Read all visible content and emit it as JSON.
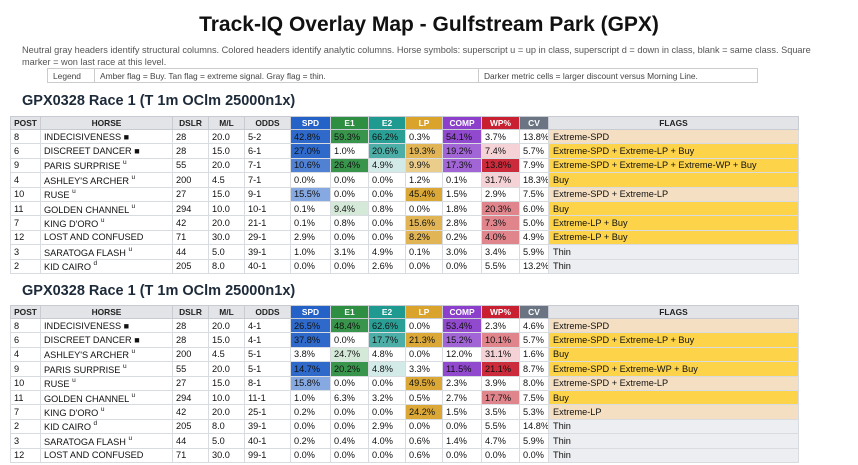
{
  "title": "Track-IQ Overlay Map - Gulfstream Park (GPX)",
  "description": "Neutral gray headers identify structural columns. Colored headers identify analytic columns. Horse symbols: superscript u = up in class, superscript d = down in class, blank = same class. Square marker = won last race at this level.",
  "legend": {
    "label": "Legend",
    "flags": "Amber flag = Buy. Tan flag = extreme signal. Gray flag = thin.",
    "metrics": "Darker metric cells = larger discount versus Morning Line."
  },
  "columns": [
    "POST",
    "HORSE",
    "DSLR",
    "M/L",
    "ODDS",
    "SPD",
    "E1",
    "E2",
    "LP",
    "COMP",
    "WP%",
    "CV",
    "FLAGS"
  ],
  "colors": {
    "SPD": "#2462c8",
    "E1": "#2e8f42",
    "E2": "#1f9a90",
    "LP": "#d9a32c",
    "COMP": "#8b3fcb",
    "WP": "#c82030",
    "CV": "#6a7482",
    "flag_buy": "#fdd34a",
    "flag_extreme": "#f5dfc3",
    "flag_thin": "#eceef1"
  },
  "races": [
    {
      "title": "GPX0328 Race 1 (T 1m OClm 25000n1x)",
      "rows": [
        {
          "post": "8",
          "horse": "INDECISIVENESS",
          "marker": "■",
          "sup": "",
          "dslr": "28",
          "ml": "20.0",
          "odds": "5-2",
          "m": [
            [
              "42.8%",
              4
            ],
            [
              "59.3%",
              4
            ],
            [
              "66.2%",
              4
            ],
            [
              "0.3%",
              0
            ],
            [
              "54.1%",
              4
            ],
            [
              "3.7%",
              0
            ],
            [
              "13.8%",
              0
            ]
          ],
          "flags": "Extreme-SPD",
          "flag_type": "extreme"
        },
        {
          "post": "6",
          "horse": "DISCREET DANCER",
          "marker": "■",
          "sup": "",
          "dslr": "28",
          "ml": "15.0",
          "odds": "6-1",
          "m": [
            [
              "27.0%",
              4
            ],
            [
              "1.0%",
              0
            ],
            [
              "20.6%",
              3
            ],
            [
              "19.3%",
              3
            ],
            [
              "19.2%",
              3
            ],
            [
              "7.4%",
              1
            ],
            [
              "5.7%",
              0
            ]
          ],
          "flags": "Extreme-SPD + Extreme-LP + Buy",
          "flag_type": "buy"
        },
        {
          "post": "9",
          "horse": "PARIS SURPRISE",
          "marker": "",
          "sup": "u",
          "dslr": "55",
          "ml": "20.0",
          "odds": "7-1",
          "m": [
            [
              "10.6%",
              3
            ],
            [
              "26.4%",
              4
            ],
            [
              "4.9%",
              1
            ],
            [
              "9.9%",
              2
            ],
            [
              "17.3%",
              3
            ],
            [
              "13.8%",
              4
            ],
            [
              "7.9%",
              0
            ]
          ],
          "flags": "Extreme-SPD + Extreme-LP + Extreme-WP + Buy",
          "flag_type": "buy"
        },
        {
          "post": "4",
          "horse": "ASHLEY'S ARCHER",
          "marker": "",
          "sup": "u",
          "dslr": "200",
          "ml": "4.5",
          "odds": "7-1",
          "m": [
            [
              "0.0%",
              0
            ],
            [
              "0.0%",
              0
            ],
            [
              "0.0%",
              0
            ],
            [
              "1.2%",
              0
            ],
            [
              "0.1%",
              0
            ],
            [
              "31.7%",
              1
            ],
            [
              "18.3%",
              0
            ]
          ],
          "flags": "Buy",
          "flag_type": "buy"
        },
        {
          "post": "10",
          "horse": "RUSE",
          "marker": "",
          "sup": "u",
          "dslr": "27",
          "ml": "15.0",
          "odds": "9-1",
          "m": [
            [
              "15.5%",
              2
            ],
            [
              "0.0%",
              0
            ],
            [
              "0.0%",
              0
            ],
            [
              "45.4%",
              4
            ],
            [
              "1.5%",
              0
            ],
            [
              "2.9%",
              0
            ],
            [
              "7.5%",
              0
            ]
          ],
          "flags": "Extreme-SPD + Extreme-LP",
          "flag_type": "extreme"
        },
        {
          "post": "11",
          "horse": "GOLDEN CHANNEL",
          "marker": "",
          "sup": "u",
          "dslr": "294",
          "ml": "10.0",
          "odds": "10-1",
          "m": [
            [
              "0.1%",
              0
            ],
            [
              "9.4%",
              1
            ],
            [
              "0.8%",
              0
            ],
            [
              "0.0%",
              0
            ],
            [
              "1.8%",
              0
            ],
            [
              "20.3%",
              2
            ],
            [
              "6.0%",
              0
            ]
          ],
          "flags": "Buy",
          "flag_type": "buy"
        },
        {
          "post": "7",
          "horse": "KING D'ORO",
          "marker": "",
          "sup": "u",
          "dslr": "42",
          "ml": "20.0",
          "odds": "21-1",
          "m": [
            [
              "0.1%",
              0
            ],
            [
              "0.8%",
              0
            ],
            [
              "0.0%",
              0
            ],
            [
              "15.6%",
              3
            ],
            [
              "2.8%",
              0
            ],
            [
              "7.3%",
              2
            ],
            [
              "5.0%",
              0
            ]
          ],
          "flags": "Extreme-LP + Buy",
          "flag_type": "buy"
        },
        {
          "post": "12",
          "horse": "LOST AND CONFUSED",
          "marker": "",
          "sup": "",
          "dslr": "71",
          "ml": "30.0",
          "odds": "29-1",
          "m": [
            [
              "2.9%",
              0
            ],
            [
              "0.0%",
              0
            ],
            [
              "0.0%",
              0
            ],
            [
              "8.2%",
              3
            ],
            [
              "0.2%",
              0
            ],
            [
              "4.0%",
              2
            ],
            [
              "4.9%",
              0
            ]
          ],
          "flags": "Extreme-LP + Buy",
          "flag_type": "buy"
        },
        {
          "post": "3",
          "horse": "SARATOGA FLASH",
          "marker": "",
          "sup": "u",
          "dslr": "44",
          "ml": "5.0",
          "odds": "39-1",
          "m": [
            [
              "1.0%",
              0
            ],
            [
              "3.1%",
              0
            ],
            [
              "4.9%",
              0
            ],
            [
              "0.1%",
              0
            ],
            [
              "3.0%",
              0
            ],
            [
              "3.4%",
              0
            ],
            [
              "5.9%",
              0
            ]
          ],
          "flags": "Thin",
          "flag_type": "thin"
        },
        {
          "post": "2",
          "horse": "KID CAIRO",
          "marker": "",
          "sup": "d",
          "dslr": "205",
          "ml": "8.0",
          "odds": "40-1",
          "m": [
            [
              "0.0%",
              0
            ],
            [
              "0.0%",
              0
            ],
            [
              "2.6%",
              0
            ],
            [
              "0.0%",
              0
            ],
            [
              "0.0%",
              0
            ],
            [
              "5.5%",
              0
            ],
            [
              "13.2%",
              0
            ]
          ],
          "flags": "Thin",
          "flag_type": "thin"
        }
      ]
    },
    {
      "title": "GPX0328 Race 1 (T 1m OClm 25000n1x)",
      "rows": [
        {
          "post": "8",
          "horse": "INDECISIVENESS",
          "marker": "■",
          "sup": "",
          "dslr": "28",
          "ml": "20.0",
          "odds": "4-1",
          "m": [
            [
              "26.5%",
              4
            ],
            [
              "48.4%",
              4
            ],
            [
              "62.6%",
              4
            ],
            [
              "0.0%",
              0
            ],
            [
              "53.4%",
              4
            ],
            [
              "2.3%",
              0
            ],
            [
              "4.6%",
              0
            ]
          ],
          "flags": "Extreme-SPD",
          "flag_type": "extreme"
        },
        {
          "post": "6",
          "horse": "DISCREET DANCER",
          "marker": "■",
          "sup": "",
          "dslr": "28",
          "ml": "15.0",
          "odds": "4-1",
          "m": [
            [
              "37.8%",
              4
            ],
            [
              "0.0%",
              0
            ],
            [
              "17.7%",
              3
            ],
            [
              "21.3%",
              4
            ],
            [
              "15.2%",
              3
            ],
            [
              "10.1%",
              2
            ],
            [
              "5.7%",
              0
            ]
          ],
          "flags": "Extreme-SPD + Extreme-LP + Buy",
          "flag_type": "buy"
        },
        {
          "post": "4",
          "horse": "ASHLEY'S ARCHER",
          "marker": "",
          "sup": "u",
          "dslr": "200",
          "ml": "4.5",
          "odds": "5-1",
          "m": [
            [
              "3.8%",
              0
            ],
            [
              "24.7%",
              1
            ],
            [
              "4.8%",
              0
            ],
            [
              "0.0%",
              0
            ],
            [
              "12.0%",
              0
            ],
            [
              "31.1%",
              1
            ],
            [
              "1.6%",
              0
            ]
          ],
          "flags": "Buy",
          "flag_type": "buy"
        },
        {
          "post": "9",
          "horse": "PARIS SURPRISE",
          "marker": "",
          "sup": "u",
          "dslr": "55",
          "ml": "20.0",
          "odds": "5-1",
          "m": [
            [
              "14.7%",
              4
            ],
            [
              "20.2%",
              4
            ],
            [
              "4.8%",
              1
            ],
            [
              "3.3%",
              0
            ],
            [
              "11.5%",
              4
            ],
            [
              "21.1%",
              4
            ],
            [
              "8.7%",
              0
            ]
          ],
          "flags": "Extreme-SPD + Extreme-WP + Buy",
          "flag_type": "buy"
        },
        {
          "post": "10",
          "horse": "RUSE",
          "marker": "",
          "sup": "u",
          "dslr": "27",
          "ml": "15.0",
          "odds": "8-1",
          "m": [
            [
              "15.8%",
              2
            ],
            [
              "0.0%",
              0
            ],
            [
              "0.0%",
              0
            ],
            [
              "49.5%",
              4
            ],
            [
              "2.3%",
              0
            ],
            [
              "3.9%",
              0
            ],
            [
              "8.0%",
              0
            ]
          ],
          "flags": "Extreme-SPD + Extreme-LP",
          "flag_type": "extreme"
        },
        {
          "post": "11",
          "horse": "GOLDEN CHANNEL",
          "marker": "",
          "sup": "u",
          "dslr": "294",
          "ml": "10.0",
          "odds": "11-1",
          "m": [
            [
              "1.0%",
              0
            ],
            [
              "6.3%",
              0
            ],
            [
              "3.2%",
              0
            ],
            [
              "0.5%",
              0
            ],
            [
              "2.7%",
              0
            ],
            [
              "17.7%",
              2
            ],
            [
              "7.5%",
              0
            ]
          ],
          "flags": "Buy",
          "flag_type": "buy"
        },
        {
          "post": "7",
          "horse": "KING D'ORO",
          "marker": "",
          "sup": "u",
          "dslr": "42",
          "ml": "20.0",
          "odds": "25-1",
          "m": [
            [
              "0.2%",
              0
            ],
            [
              "0.0%",
              0
            ],
            [
              "0.0%",
              0
            ],
            [
              "24.2%",
              4
            ],
            [
              "1.5%",
              0
            ],
            [
              "3.5%",
              0
            ],
            [
              "5.3%",
              0
            ]
          ],
          "flags": "Extreme-LP",
          "flag_type": "extreme"
        },
        {
          "post": "2",
          "horse": "KID CAIRO",
          "marker": "",
          "sup": "d",
          "dslr": "205",
          "ml": "8.0",
          "odds": "39-1",
          "m": [
            [
              "0.0%",
              0
            ],
            [
              "0.0%",
              0
            ],
            [
              "2.9%",
              0
            ],
            [
              "0.0%",
              0
            ],
            [
              "0.0%",
              0
            ],
            [
              "5.5%",
              0
            ],
            [
              "14.8%",
              0
            ]
          ],
          "flags": "Thin",
          "flag_type": "thin"
        },
        {
          "post": "3",
          "horse": "SARATOGA FLASH",
          "marker": "",
          "sup": "u",
          "dslr": "44",
          "ml": "5.0",
          "odds": "40-1",
          "m": [
            [
              "0.2%",
              0
            ],
            [
              "0.4%",
              0
            ],
            [
              "4.0%",
              0
            ],
            [
              "0.6%",
              0
            ],
            [
              "1.4%",
              0
            ],
            [
              "4.7%",
              0
            ],
            [
              "5.9%",
              0
            ]
          ],
          "flags": "Thin",
          "flag_type": "thin"
        },
        {
          "post": "12",
          "horse": "LOST AND CONFUSED",
          "marker": "",
          "sup": "",
          "dslr": "71",
          "ml": "30.0",
          "odds": "99-1",
          "m": [
            [
              "0.0%",
              0
            ],
            [
              "0.0%",
              0
            ],
            [
              "0.0%",
              0
            ],
            [
              "0.6%",
              0
            ],
            [
              "0.0%",
              0
            ],
            [
              "0.0%",
              0
            ],
            [
              "0.0%",
              0
            ]
          ],
          "flags": "Thin",
          "flag_type": "thin"
        }
      ]
    }
  ]
}
